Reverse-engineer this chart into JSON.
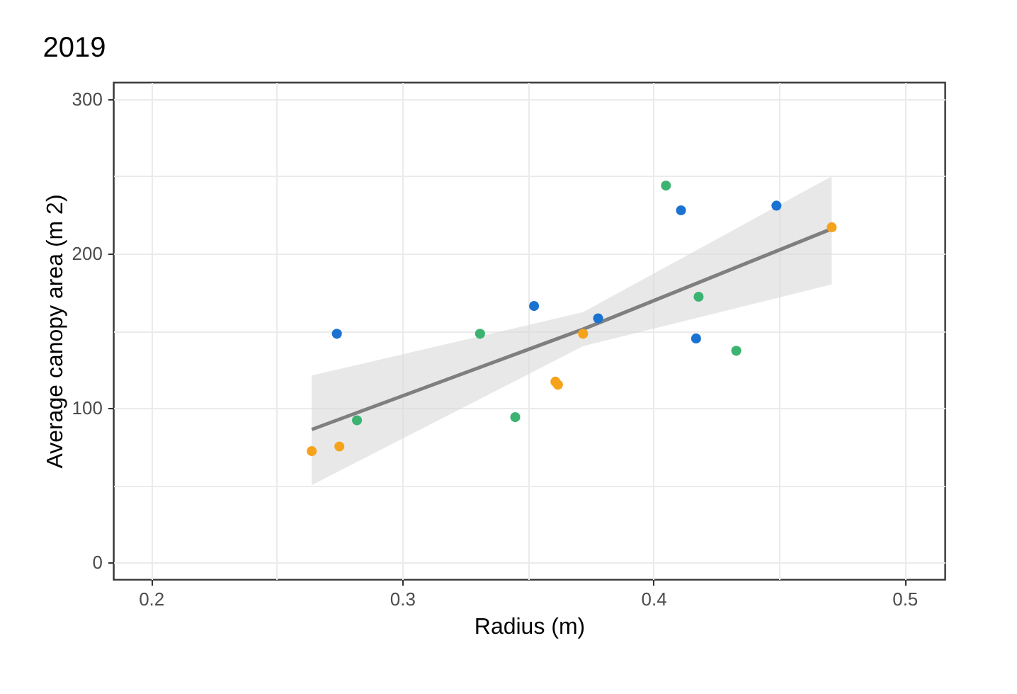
{
  "chart_data": {
    "type": "scatter",
    "title": "2019",
    "xlabel": "Radius (m)",
    "ylabel": "Average canopy area (m 2)",
    "xlim": [
      0.185,
      0.516
    ],
    "xticks": [
      0.2,
      {
        "value": 0.25,
        "label": null
      },
      0.3,
      {
        "value": 0.35,
        "label": null
      },
      0.4,
      {
        "value": 0.45,
        "label": null
      },
      0.5
    ],
    "ylim": [
      -11,
      311
    ],
    "yticks": [
      0,
      {
        "value": 50,
        "label": null
      },
      100,
      {
        "value": 150,
        "label": null
      },
      200,
      {
        "value": 250,
        "label": null
      },
      300
    ],
    "grid": true,
    "marker": "circle",
    "series": [
      {
        "color": "#1a73d0",
        "x": [
          0.274,
          0.3525,
          0.378,
          0.411,
          0.417,
          0.449
        ],
        "values": [
          148,
          166,
          158,
          228,
          145,
          231
        ]
      },
      {
        "color": "#3cb371",
        "x": [
          0.282,
          0.331,
          0.345,
          0.405,
          0.418,
          0.433
        ],
        "values": [
          92,
          148,
          94,
          244,
          172,
          137
        ]
      },
      {
        "color": "#f5a31a",
        "x": [
          0.264,
          0.275,
          0.361,
          0.362,
          0.372,
          0.471
        ],
        "values": [
          72,
          75,
          117,
          115,
          148,
          217
        ]
      },
      {
        "type": "line",
        "marker": "none",
        "color": "#7f7f7f",
        "x": [
          0.264,
          0.372,
          0.471
        ],
        "values": [
          86,
          151,
          216
        ],
        "lower": [
          50,
          140,
          180
        ],
        "upper": [
          121,
          162,
          250
        ]
      }
    ]
  }
}
